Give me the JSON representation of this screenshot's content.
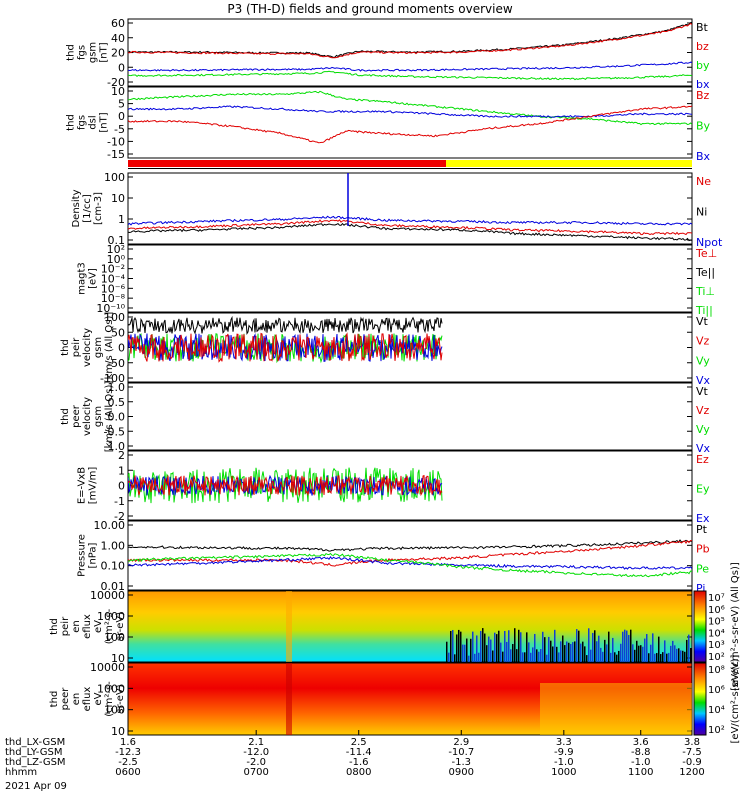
{
  "title": "P3 (TH-D) fields and ground moments overview",
  "colors": {
    "black": "#000000",
    "red": "#e00000",
    "green": "#00dd00",
    "blue": "#0000dd",
    "yellow": "#ffff00",
    "barred": "#ee0000"
  },
  "chart_data": [
    {
      "type": "line",
      "id": "fgs-b",
      "ylabel": [
        "thd",
        "fgs",
        "gsm",
        "[nT]"
      ],
      "yticks": [
        "60",
        "40",
        "20",
        "0",
        "-20"
      ],
      "ylim": [
        -20,
        65
      ],
      "legend": [
        {
          "label": "Bt",
          "color": "black"
        },
        {
          "label": "bz",
          "color": "red"
        },
        {
          "label": "by",
          "color": "green"
        },
        {
          "label": "bx",
          "color": "blue"
        }
      ],
      "series": [
        {
          "color": "black",
          "x": [
            1.6,
            1.9,
            2.1,
            2.3,
            2.4,
            2.5,
            2.7,
            2.9,
            3.1,
            3.3,
            3.5,
            3.7,
            3.8
          ],
          "y": [
            23,
            23,
            22,
            22,
            17,
            24,
            23,
            24,
            27,
            32,
            40,
            50,
            60
          ]
        },
        {
          "color": "red",
          "x": [
            1.6,
            1.9,
            2.1,
            2.3,
            2.4,
            2.5,
            2.7,
            2.9,
            3.1,
            3.3,
            3.5,
            3.7,
            3.8
          ],
          "y": [
            23,
            22,
            21,
            21,
            16,
            23,
            22,
            23,
            26,
            31,
            39,
            49,
            59
          ]
        },
        {
          "color": "green",
          "x": [
            1.6,
            1.9,
            2.1,
            2.3,
            2.4,
            2.5,
            2.7,
            2.9,
            3.1,
            3.3,
            3.5,
            3.7,
            3.8
          ],
          "y": [
            -7,
            -6,
            -5,
            -4,
            -2,
            -6,
            -8,
            -9,
            -10,
            -11,
            -10,
            -8,
            -6
          ]
        },
        {
          "color": "blue",
          "x": [
            1.6,
            1.9,
            2.1,
            2.3,
            2.4,
            2.5,
            2.7,
            2.9,
            3.1,
            3.3,
            3.5,
            3.7,
            3.8
          ],
          "y": [
            0,
            0,
            1,
            1,
            3,
            0,
            0,
            1,
            2,
            3,
            5,
            8,
            10
          ]
        }
      ]
    },
    {
      "type": "line",
      "id": "fgs-b-detrend",
      "ylabel": [
        "thd",
        "fgs",
        "dsl",
        "[nT]"
      ],
      "yticks": [
        "10",
        "5",
        "0",
        "-5",
        "-10",
        "-15"
      ],
      "ylim": [
        -18,
        11
      ],
      "legend": [
        {
          "label": "Bz",
          "color": "red"
        },
        {
          "label": "By",
          "color": "green"
        },
        {
          "label": "Bx",
          "color": "blue"
        }
      ],
      "series": [
        {
          "color": "green",
          "x": [
            1.6,
            1.8,
            2.0,
            2.2,
            2.35,
            2.45,
            2.6,
            2.8,
            3.0,
            3.2,
            3.4,
            3.6,
            3.8
          ],
          "y": [
            6,
            7,
            8,
            8,
            9,
            6,
            5,
            3,
            1,
            -1,
            -2,
            -4,
            -4
          ]
        },
        {
          "color": "blue",
          "x": [
            1.6,
            1.8,
            2.0,
            2.2,
            2.35,
            2.45,
            2.6,
            2.8,
            3.0,
            3.2,
            3.4,
            3.6,
            3.8
          ],
          "y": [
            2,
            2,
            3,
            2,
            1,
            1,
            1,
            0,
            -1,
            -1,
            -1,
            0,
            0
          ]
        },
        {
          "color": "red",
          "x": [
            1.6,
            1.8,
            2.0,
            2.2,
            2.35,
            2.45,
            2.6,
            2.8,
            3.0,
            3.2,
            3.4,
            3.6,
            3.8
          ],
          "y": [
            -3,
            -3,
            -5,
            -8,
            -12,
            -7,
            -8,
            -9,
            -6,
            -4,
            -1,
            2,
            3
          ]
        }
      ]
    },
    {
      "type": "line",
      "id": "density",
      "ylabel": [
        "Density",
        "[1/cc]",
        "[cm-3]"
      ],
      "yticks": [
        "100",
        "10",
        "1",
        "0.1"
      ],
      "yscale": "log",
      "ylim": [
        0.06,
        200
      ],
      "legend": [
        {
          "label": "Ne",
          "color": "red"
        },
        {
          "label": "Ni",
          "color": "black"
        },
        {
          "label": "Npot",
          "color": "blue"
        }
      ],
      "series": [
        {
          "color": "blue",
          "x": [
            1.6,
            1.9,
            2.2,
            2.4,
            2.6,
            2.9,
            3.1,
            3.4,
            3.6,
            3.8
          ],
          "y": [
            0.6,
            0.8,
            1.0,
            1.3,
            0.9,
            0.8,
            0.7,
            0.7,
            0.6,
            0.6
          ]
        },
        {
          "color": "red",
          "x": [
            1.6,
            1.9,
            2.2,
            2.4,
            2.6,
            2.9,
            3.1,
            3.4,
            3.6,
            3.8
          ],
          "y": [
            0.35,
            0.45,
            0.6,
            0.9,
            0.5,
            0.4,
            0.3,
            0.25,
            0.2,
            0.2
          ]
        },
        {
          "color": "black",
          "x": [
            1.6,
            1.9,
            2.2,
            2.4,
            2.6,
            2.9,
            3.1,
            3.4,
            3.6,
            3.8
          ],
          "y": [
            0.25,
            0.3,
            0.4,
            0.6,
            0.35,
            0.3,
            0.2,
            0.15,
            0.12,
            0.1
          ]
        }
      ]
    },
    {
      "type": "line",
      "id": "temperature",
      "ylabel": [
        "magt3",
        "[eV]"
      ],
      "yticks": [
        "10²",
        "10⁰",
        "10⁻²",
        "10⁻⁴",
        "10⁻⁶",
        "10⁻⁸",
        "10⁻¹⁰"
      ],
      "yscale": "log",
      "legend": [
        {
          "label": "Te⊥",
          "color": "red"
        },
        {
          "label": "Te||",
          "color": "black"
        },
        {
          "label": "Ti⊥",
          "color": "green"
        },
        {
          "label": "Ti||",
          "color": "green"
        }
      ]
    },
    {
      "type": "line",
      "id": "peir-velocity",
      "ylabel": [
        "thd",
        "peir",
        "velocity",
        "gsm",
        "[km/s (All Qs)]"
      ],
      "yticks": [
        "100",
        "50",
        "0",
        "-50",
        "-100"
      ],
      "ylim": [
        -100,
        100
      ],
      "legend": [
        {
          "label": "Vt",
          "color": "black"
        },
        {
          "label": "Vz",
          "color": "red"
        },
        {
          "label": "Vy",
          "color": "green"
        },
        {
          "label": "Vx",
          "color": "blue"
        }
      ]
    },
    {
      "type": "line",
      "id": "peer-velocity",
      "ylabel": [
        "thd",
        "peer",
        "velocity",
        "gsm",
        "[km/s (All Qs)]"
      ],
      "yticks": [
        "1.0",
        "0.5",
        "0.0",
        "-0.5",
        "-1.0"
      ],
      "ylim": [
        -1,
        1
      ],
      "legend": [
        {
          "label": "Vt",
          "color": "black"
        },
        {
          "label": "Vz",
          "color": "red"
        },
        {
          "label": "Vy",
          "color": "green"
        },
        {
          "label": "Vx",
          "color": "blue"
        }
      ]
    },
    {
      "type": "line",
      "id": "efield",
      "ylabel": [
        "E=-VxB",
        "[mV/m]"
      ],
      "yticks": [
        "2",
        "1",
        "0",
        "-1",
        "-2"
      ],
      "ylim": [
        -2,
        2
      ],
      "legend": [
        {
          "label": "Ez",
          "color": "red"
        },
        {
          "label": "Ey",
          "color": "green"
        },
        {
          "label": "Ex",
          "color": "blue"
        }
      ]
    },
    {
      "type": "line",
      "id": "pressure",
      "ylabel": [
        "Pressure",
        "[nPa]"
      ],
      "yticks": [
        "10.00",
        "1.00",
        "0.10",
        "0.01"
      ],
      "yscale": "log",
      "ylim": [
        0.01,
        10
      ],
      "legend": [
        {
          "label": "Pt",
          "color": "black"
        },
        {
          "label": "Pb",
          "color": "red"
        },
        {
          "label": "Pe",
          "color": "green"
        },
        {
          "label": "Pi",
          "color": "blue"
        }
      ],
      "series": [
        {
          "color": "black",
          "x": [
            1.6,
            1.9,
            2.2,
            2.4,
            2.6,
            2.9,
            3.1,
            3.4,
            3.6,
            3.8
          ],
          "y": [
            0.75,
            0.7,
            0.65,
            0.55,
            0.65,
            0.7,
            0.75,
            0.9,
            1.1,
            1.4
          ]
        },
        {
          "color": "red",
          "x": [
            1.6,
            1.9,
            2.2,
            2.4,
            2.6,
            2.9,
            3.1,
            3.4,
            3.6,
            3.8
          ],
          "y": [
            0.2,
            0.2,
            0.2,
            0.12,
            0.2,
            0.25,
            0.35,
            0.55,
            0.85,
            1.3
          ]
        },
        {
          "color": "blue",
          "x": [
            1.6,
            1.9,
            2.2,
            2.4,
            2.6,
            2.9,
            3.1,
            3.4,
            3.6,
            3.8
          ],
          "y": [
            0.12,
            0.15,
            0.2,
            0.25,
            0.15,
            0.12,
            0.11,
            0.1,
            0.09,
            0.09
          ]
        },
        {
          "color": "green",
          "x": [
            1.6,
            1.9,
            2.2,
            2.4,
            2.6,
            2.9,
            3.1,
            3.4,
            3.6,
            3.8
          ],
          "y": [
            0.2,
            0.25,
            0.3,
            0.35,
            0.2,
            0.1,
            0.07,
            0.05,
            0.04,
            0.06
          ]
        }
      ]
    },
    {
      "type": "heatmap",
      "id": "peir-eflux",
      "ylabel": [
        "thd",
        "peir",
        "en",
        "eflux",
        "eV",
        "(cm²-s-",
        "sr-eV)"
      ],
      "yticks": [
        "10000",
        "1000",
        "100",
        "10"
      ],
      "yscale": "log"
    },
    {
      "type": "heatmap",
      "id": "peer-eflux",
      "ylabel": [
        "thd",
        "peer",
        "en",
        "eflux",
        "eV",
        "(cm²-s-",
        "sr-eV)"
      ],
      "yticks": [
        "10000",
        "1000",
        "100",
        "10"
      ],
      "yscale": "log"
    }
  ],
  "colorbar1": {
    "labels": [
      "10⁷",
      "10⁶",
      "10⁵",
      "10⁴",
      "10³",
      "10²"
    ]
  },
  "colorbar2": {
    "labels": [
      "10⁸",
      "10⁶",
      "10⁴",
      "10²"
    ]
  },
  "colorbar_title": "[eV/(cm²-s-sr-eV)]",
  "colorbar1_title": "[eV/(cm²-s-sr-eV) (All Qs)]",
  "xaxis": {
    "rows": [
      {
        "label": "thd_LX-GSM",
        "values": [
          "1.6",
          "2.1",
          "2.5",
          "2.9",
          "3.3",
          "3.6",
          "3.8"
        ]
      },
      {
        "label": "thd_LY-GSM",
        "values": [
          "-12.3",
          "-12.0",
          "-11.4",
          "-10.7",
          "-9.9",
          "-8.8",
          "-7.5"
        ]
      },
      {
        "label": "thd_LZ-GSM",
        "values": [
          "-2.5",
          "-2.0",
          "-1.6",
          "-1.3",
          "-1.0",
          "-1.0",
          "-0.9"
        ]
      },
      {
        "label": "hhmm",
        "values": [
          "0600",
          "0700",
          "0800",
          "0900",
          "1000",
          "1100",
          "1200"
        ]
      }
    ],
    "date": "2021 Apr 09"
  }
}
